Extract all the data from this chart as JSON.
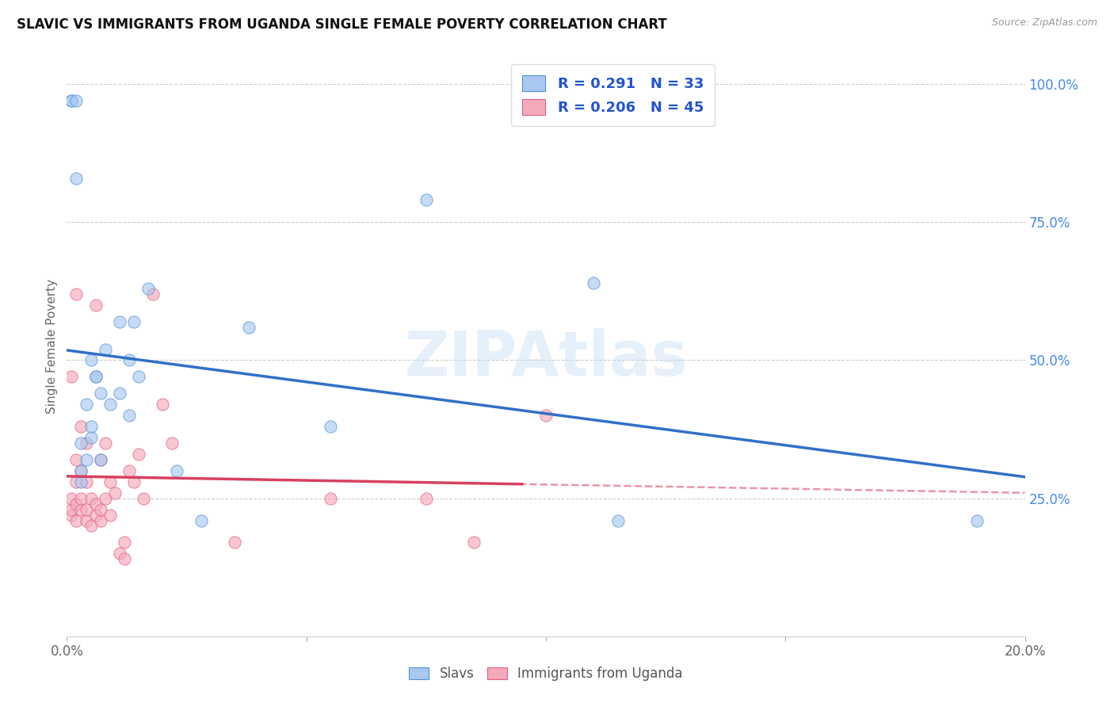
{
  "title": "SLAVIC VS IMMIGRANTS FROM UGANDA SINGLE FEMALE POVERTY CORRELATION CHART",
  "source": "Source: ZipAtlas.com",
  "ylabel": "Single Female Poverty",
  "legend_labels": [
    "Slavs",
    "Immigrants from Uganda"
  ],
  "legend_r": [
    "R = 0.291",
    "R = 0.206"
  ],
  "legend_n": [
    "N = 33",
    "N = 45"
  ],
  "slavs_color": "#a8c8f0",
  "uganda_color": "#f5aabb",
  "slavs_line_color": "#3070c8",
  "uganda_line_color": "#d84060",
  "slavs_edge_color": "#5090d8",
  "uganda_edge_color": "#e06080",
  "watermark": "ZIPAtlas",
  "xlim": [
    0.0,
    0.2
  ],
  "ylim": [
    0.0,
    1.05
  ],
  "xtick_positions": [
    0.0,
    0.05,
    0.1,
    0.15,
    0.2
  ],
  "xtick_labels": [
    "0.0%",
    "",
    "",
    "",
    "20.0%"
  ],
  "ytick_positions": [
    0.25,
    0.5,
    0.75,
    1.0
  ],
  "ytick_labels": [
    "25.0%",
    "50.0%",
    "75.0%",
    "100.0%"
  ],
  "grid_yticks": [
    0.25,
    0.5,
    0.75,
    1.0
  ],
  "slavs_x": [
    0.001,
    0.001,
    0.002,
    0.002,
    0.003,
    0.003,
    0.003,
    0.004,
    0.004,
    0.005,
    0.005,
    0.005,
    0.006,
    0.006,
    0.007,
    0.007,
    0.008,
    0.009,
    0.011,
    0.011,
    0.013,
    0.013,
    0.014,
    0.015,
    0.017,
    0.023,
    0.028,
    0.038,
    0.055,
    0.075,
    0.11,
    0.115,
    0.19
  ],
  "slavs_y": [
    0.97,
    0.97,
    0.83,
    0.97,
    0.28,
    0.3,
    0.35,
    0.32,
    0.42,
    0.36,
    0.38,
    0.5,
    0.47,
    0.47,
    0.32,
    0.44,
    0.52,
    0.42,
    0.44,
    0.57,
    0.4,
    0.5,
    0.57,
    0.47,
    0.63,
    0.3,
    0.21,
    0.56,
    0.38,
    0.79,
    0.64,
    0.21,
    0.21
  ],
  "uganda_x": [
    0.001,
    0.001,
    0.001,
    0.001,
    0.002,
    0.002,
    0.002,
    0.002,
    0.002,
    0.003,
    0.003,
    0.003,
    0.003,
    0.004,
    0.004,
    0.004,
    0.004,
    0.005,
    0.005,
    0.006,
    0.006,
    0.006,
    0.007,
    0.007,
    0.007,
    0.008,
    0.008,
    0.009,
    0.009,
    0.01,
    0.011,
    0.012,
    0.012,
    0.013,
    0.014,
    0.015,
    0.016,
    0.018,
    0.02,
    0.022,
    0.035,
    0.055,
    0.075,
    0.085,
    0.1
  ],
  "uganda_y": [
    0.22,
    0.23,
    0.25,
    0.47,
    0.21,
    0.24,
    0.28,
    0.32,
    0.62,
    0.23,
    0.25,
    0.3,
    0.38,
    0.21,
    0.23,
    0.28,
    0.35,
    0.2,
    0.25,
    0.22,
    0.24,
    0.6,
    0.21,
    0.23,
    0.32,
    0.25,
    0.35,
    0.22,
    0.28,
    0.26,
    0.15,
    0.14,
    0.17,
    0.3,
    0.28,
    0.33,
    0.25,
    0.62,
    0.42,
    0.35,
    0.17,
    0.25,
    0.25,
    0.17,
    0.4
  ],
  "marker_size": 120,
  "marker_alpha": 0.65,
  "trend_solid_end_slavs": 0.2,
  "trend_solid_end_uganda": 0.095,
  "trend_dash_start_uganda": 0.09,
  "trend_dash_end_uganda": 0.2
}
